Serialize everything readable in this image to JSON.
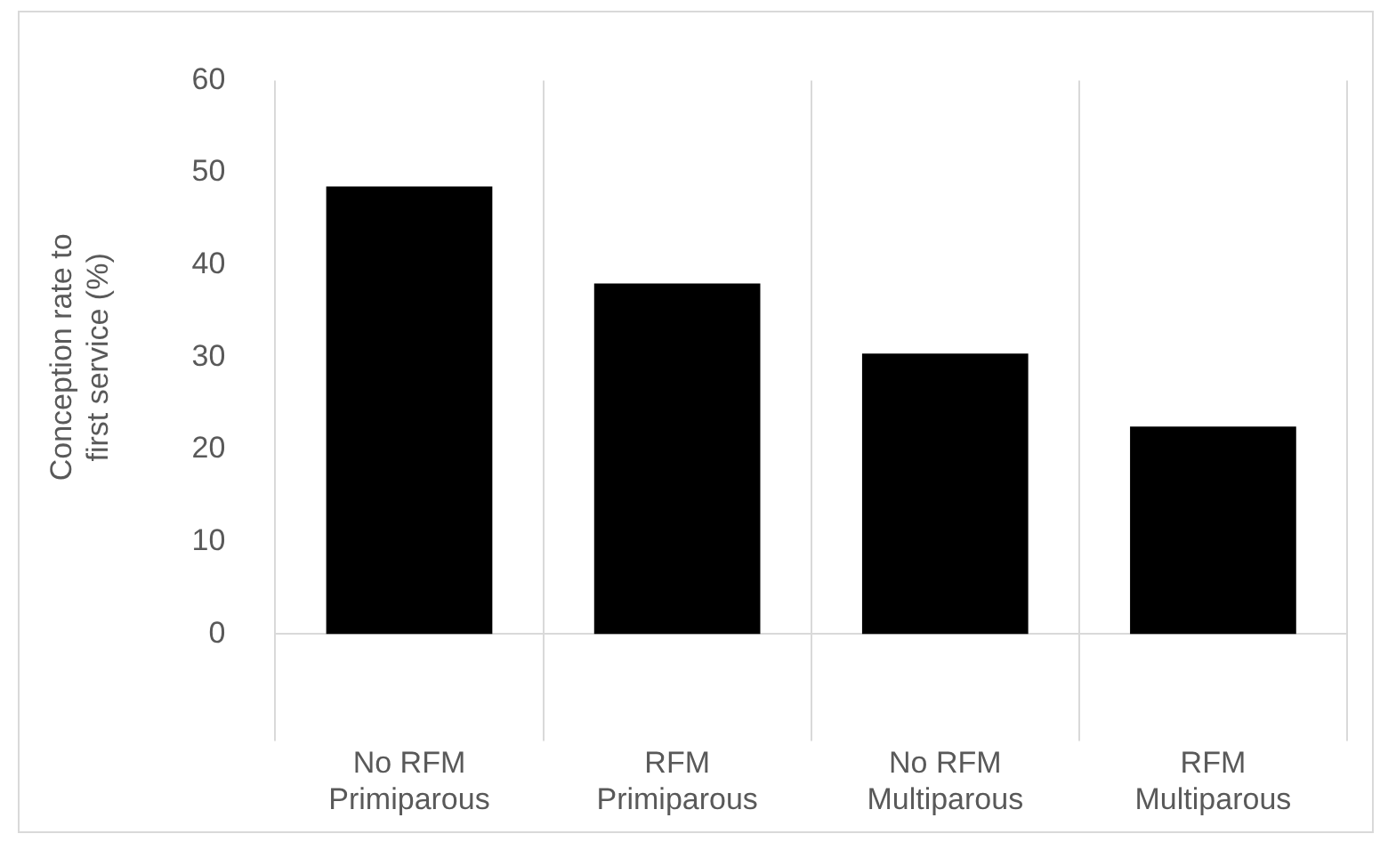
{
  "chart_data": {
    "type": "bar",
    "ylabel": "Conception rate to first service (%)",
    "categories": [
      "No RFM\nPrimiparous",
      "RFM\nPrimiparous",
      "No RFM\nMultiparous",
      "RFM\nMultiparous"
    ],
    "values": [
      48.5,
      38,
      30.4,
      22.5
    ],
    "color": "#000000",
    "ylim": [
      0,
      60
    ],
    "yticks": [
      0,
      10,
      20,
      30,
      40,
      50,
      60
    ],
    "grid": false,
    "legend": false
  }
}
